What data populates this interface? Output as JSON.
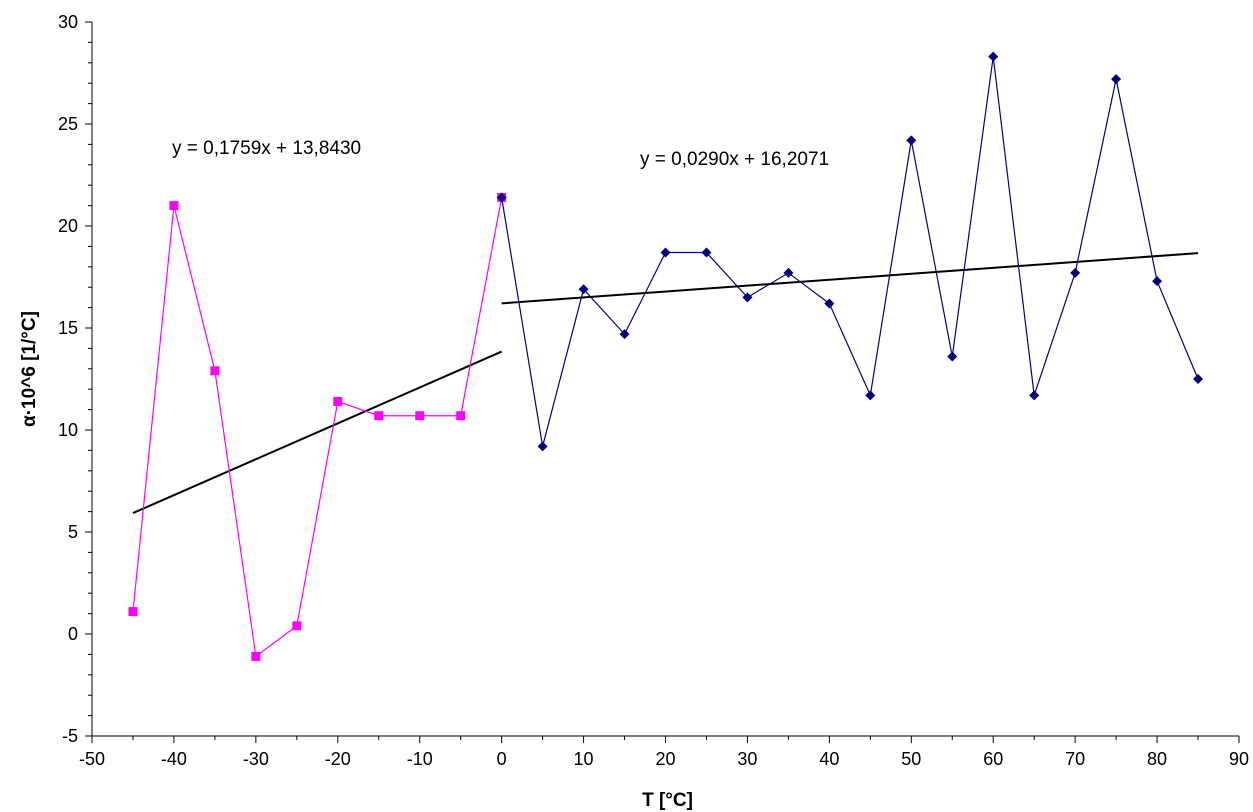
{
  "chart_data": {
    "type": "line",
    "title": "",
    "xlabel": "T [°C]",
    "ylabel": "α·10^6 [1/°C]",
    "xlim": [
      -50,
      90
    ],
    "ylim": [
      -5,
      30
    ],
    "xticks": [
      -50,
      -40,
      -30,
      -20,
      -10,
      0,
      10,
      20,
      30,
      40,
      50,
      60,
      70,
      80,
      90
    ],
    "yticks": [
      -5,
      0,
      5,
      10,
      15,
      20,
      25,
      30
    ],
    "grid": false,
    "legend": "none",
    "series": [
      {
        "marker": "square",
        "color": "#ff00ff",
        "x": [
          -45,
          -40,
          -35,
          -30,
          -25,
          -20,
          -15,
          -10,
          -5,
          0
        ],
        "y": [
          1.1,
          21.0,
          12.9,
          -1.1,
          0.4,
          11.4,
          10.7,
          10.7,
          10.7,
          21.4
        ]
      },
      {
        "marker": "diamond",
        "color": "#000080",
        "x": [
          0,
          5,
          10,
          15,
          20,
          25,
          30,
          35,
          40,
          45,
          50,
          55,
          60,
          65,
          70,
          75,
          80,
          85
        ],
        "y": [
          21.4,
          9.2,
          16.9,
          14.7,
          18.7,
          18.7,
          16.5,
          17.7,
          16.2,
          11.7,
          24.2,
          13.6,
          28.3,
          11.7,
          17.7,
          27.2,
          17.3,
          12.5
        ]
      }
    ],
    "trendlines": [
      {
        "x": [
          -45,
          0
        ],
        "slope": 0.1759,
        "intercept": 13.843,
        "color": "#000000"
      },
      {
        "x": [
          0,
          85
        ],
        "slope": 0.029,
        "intercept": 16.2071,
        "color": "#000000"
      }
    ],
    "annotations": [
      {
        "text": "y = 0,1759x + 13,8430"
      },
      {
        "text": "y = 0,0290x + 16,2071"
      }
    ]
  }
}
